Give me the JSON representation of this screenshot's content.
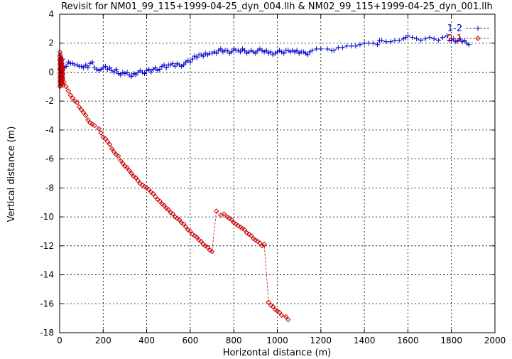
{
  "chart_data": {
    "type": "scatter",
    "title": "Revisit for NM01_99_115+1999-04-25_dyn_004.llh & NM02_99_115+1999-04-25_dyn_001.llh",
    "xlabel": "Horizontal distance (m)",
    "ylabel": "Vertical distance (m)",
    "xlim": [
      0,
      2000
    ],
    "ylim": [
      -18,
      4
    ],
    "xticks": [
      "0",
      "200",
      "400",
      "600",
      "800",
      "1000",
      "1200",
      "1400",
      "1600",
      "1800",
      "2000"
    ],
    "yticks": [
      "4",
      "2",
      "0",
      "-2",
      "-4",
      "-6",
      "-8",
      "-10",
      "-12",
      "-14",
      "-16",
      "-18"
    ],
    "grid": true,
    "legend_position": "top-right",
    "series": [
      {
        "name": "1-2",
        "color": "#0000cc",
        "marker": "plus",
        "line": "dashed",
        "points": [
          [
            2,
            1.0
          ],
          [
            3,
            0.6
          ],
          [
            4,
            0.2
          ],
          [
            5,
            -0.2
          ],
          [
            6,
            0.8
          ],
          [
            8,
            -0.4
          ],
          [
            10,
            0.5
          ],
          [
            12,
            0.1
          ],
          [
            15,
            0.9
          ],
          [
            20,
            0.3
          ],
          [
            30,
            0.4
          ],
          [
            40,
            0.7
          ],
          [
            50,
            0.6
          ],
          [
            60,
            0.6
          ],
          [
            70,
            0.5
          ],
          [
            80,
            0.5
          ],
          [
            90,
            0.4
          ],
          [
            100,
            0.4
          ],
          [
            110,
            0.3
          ],
          [
            120,
            0.5
          ],
          [
            130,
            0.3
          ],
          [
            140,
            0.6
          ],
          [
            150,
            0.7
          ],
          [
            160,
            0.3
          ],
          [
            170,
            0.2
          ],
          [
            180,
            0.1
          ],
          [
            190,
            0.2
          ],
          [
            200,
            0.3
          ],
          [
            210,
            0.4
          ],
          [
            220,
            0.2
          ],
          [
            230,
            0.3
          ],
          [
            240,
            0.1
          ],
          [
            250,
            0.0
          ],
          [
            260,
            0.2
          ],
          [
            270,
            -0.1
          ],
          [
            280,
            -0.2
          ],
          [
            290,
            0.0
          ],
          [
            300,
            -0.1
          ],
          [
            310,
            0.0
          ],
          [
            320,
            -0.2
          ],
          [
            330,
            -0.3
          ],
          [
            340,
            -0.1
          ],
          [
            350,
            -0.2
          ],
          [
            360,
            0.0
          ],
          [
            370,
            0.1
          ],
          [
            380,
            0.0
          ],
          [
            390,
            -0.1
          ],
          [
            400,
            0.1
          ],
          [
            410,
            0.2
          ],
          [
            420,
            0.0
          ],
          [
            430,
            0.2
          ],
          [
            440,
            0.3
          ],
          [
            450,
            0.1
          ],
          [
            460,
            0.2
          ],
          [
            470,
            0.4
          ],
          [
            480,
            0.5
          ],
          [
            490,
            0.3
          ],
          [
            500,
            0.5
          ],
          [
            510,
            0.5
          ],
          [
            520,
            0.6
          ],
          [
            530,
            0.4
          ],
          [
            540,
            0.6
          ],
          [
            550,
            0.5
          ],
          [
            560,
            0.4
          ],
          [
            570,
            0.5
          ],
          [
            580,
            0.7
          ],
          [
            590,
            0.8
          ],
          [
            600,
            0.7
          ],
          [
            610,
            0.9
          ],
          [
            620,
            1.1
          ],
          [
            630,
            1.0
          ],
          [
            640,
            1.2
          ],
          [
            650,
            1.2
          ],
          [
            660,
            1.1
          ],
          [
            670,
            1.3
          ],
          [
            680,
            1.2
          ],
          [
            690,
            1.3
          ],
          [
            700,
            1.3
          ],
          [
            710,
            1.4
          ],
          [
            720,
            1.3
          ],
          [
            730,
            1.5
          ],
          [
            740,
            1.6
          ],
          [
            750,
            1.4
          ],
          [
            760,
            1.5
          ],
          [
            770,
            1.5
          ],
          [
            780,
            1.3
          ],
          [
            790,
            1.4
          ],
          [
            800,
            1.6
          ],
          [
            810,
            1.5
          ],
          [
            820,
            1.5
          ],
          [
            830,
            1.4
          ],
          [
            840,
            1.6
          ],
          [
            850,
            1.5
          ],
          [
            860,
            1.3
          ],
          [
            870,
            1.4
          ],
          [
            880,
            1.5
          ],
          [
            890,
            1.4
          ],
          [
            900,
            1.3
          ],
          [
            910,
            1.5
          ],
          [
            920,
            1.6
          ],
          [
            930,
            1.5
          ],
          [
            940,
            1.4
          ],
          [
            950,
            1.5
          ],
          [
            960,
            1.3
          ],
          [
            970,
            1.4
          ],
          [
            980,
            1.2
          ],
          [
            990,
            1.3
          ],
          [
            1000,
            1.4
          ],
          [
            1010,
            1.5
          ],
          [
            1020,
            1.4
          ],
          [
            1030,
            1.3
          ],
          [
            1040,
            1.5
          ],
          [
            1050,
            1.5
          ],
          [
            1060,
            1.4
          ],
          [
            1070,
            1.5
          ],
          [
            1080,
            1.4
          ],
          [
            1090,
            1.5
          ],
          [
            1100,
            1.3
          ],
          [
            1110,
            1.4
          ],
          [
            1120,
            1.4
          ],
          [
            1130,
            1.3
          ],
          [
            1140,
            1.2
          ],
          [
            1150,
            1.4
          ],
          [
            1160,
            1.5
          ],
          [
            1180,
            1.6
          ],
          [
            1200,
            1.6
          ],
          [
            1230,
            1.6
          ],
          [
            1250,
            1.5
          ],
          [
            1260,
            1.5
          ],
          [
            1280,
            1.7
          ],
          [
            1300,
            1.7
          ],
          [
            1320,
            1.8
          ],
          [
            1340,
            1.8
          ],
          [
            1360,
            1.8
          ],
          [
            1380,
            1.9
          ],
          [
            1400,
            2.0
          ],
          [
            1420,
            2.0
          ],
          [
            1440,
            2.0
          ],
          [
            1460,
            1.9
          ],
          [
            1470,
            2.2
          ],
          [
            1480,
            2.2
          ],
          [
            1500,
            2.1
          ],
          [
            1520,
            2.1
          ],
          [
            1540,
            2.2
          ],
          [
            1560,
            2.2
          ],
          [
            1580,
            2.3
          ],
          [
            1590,
            2.4
          ],
          [
            1600,
            2.5
          ],
          [
            1620,
            2.4
          ],
          [
            1640,
            2.3
          ],
          [
            1660,
            2.2
          ],
          [
            1680,
            2.3
          ],
          [
            1700,
            2.4
          ],
          [
            1720,
            2.3
          ],
          [
            1740,
            2.2
          ],
          [
            1760,
            2.4
          ],
          [
            1780,
            2.5
          ],
          [
            1790,
            2.2
          ],
          [
            1800,
            2.2
          ],
          [
            1810,
            2.3
          ],
          [
            1820,
            2.1
          ],
          [
            1830,
            2.2
          ],
          [
            1840,
            2.3
          ],
          [
            1850,
            2.1
          ],
          [
            1860,
            2.2
          ],
          [
            1870,
            2.0
          ],
          [
            1880,
            1.9
          ]
        ]
      },
      {
        "name": "2-1",
        "color": "#cc0000",
        "marker": "diamond",
        "line": "dashed",
        "points": [
          [
            1,
            1.4
          ],
          [
            1,
            1.1
          ],
          [
            1,
            0.8
          ],
          [
            1,
            0.5
          ],
          [
            1,
            0.2
          ],
          [
            1,
            -0.1
          ],
          [
            1,
            -0.4
          ],
          [
            1,
            -0.7
          ],
          [
            1,
            -1.0
          ],
          [
            3,
            1.2
          ],
          [
            3,
            0.9
          ],
          [
            3,
            0.6
          ],
          [
            3,
            0.3
          ],
          [
            3,
            0.0
          ],
          [
            3,
            -0.3
          ],
          [
            3,
            -0.6
          ],
          [
            3,
            -0.9
          ],
          [
            5,
            1.0
          ],
          [
            5,
            0.7
          ],
          [
            5,
            0.4
          ],
          [
            5,
            0.1
          ],
          [
            5,
            -0.2
          ],
          [
            5,
            -0.5
          ],
          [
            5,
            -0.8
          ],
          [
            7,
            0.9
          ],
          [
            7,
            0.6
          ],
          [
            7,
            0.3
          ],
          [
            7,
            0.0
          ],
          [
            7,
            -0.3
          ],
          [
            7,
            -0.6
          ],
          [
            9,
            0.8
          ],
          [
            9,
            0.5
          ],
          [
            9,
            0.2
          ],
          [
            9,
            -0.1
          ],
          [
            9,
            -0.4
          ],
          [
            9,
            -0.7
          ],
          [
            11,
            0.6
          ],
          [
            11,
            0.3
          ],
          [
            11,
            0.0
          ],
          [
            11,
            -0.3
          ],
          [
            11,
            -0.6
          ],
          [
            13,
            0.4
          ],
          [
            13,
            0.1
          ],
          [
            13,
            -0.2
          ],
          [
            13,
            -0.5
          ],
          [
            13,
            -0.8
          ],
          [
            15,
            0.2
          ],
          [
            15,
            -0.1
          ],
          [
            15,
            -0.4
          ],
          [
            15,
            -0.9
          ],
          [
            20,
            -0.7
          ],
          [
            30,
            -1.0
          ],
          [
            40,
            -1.3
          ],
          [
            50,
            -1.6
          ],
          [
            60,
            -1.8
          ],
          [
            70,
            -2.0
          ],
          [
            80,
            -2.1
          ],
          [
            90,
            -2.4
          ],
          [
            100,
            -2.6
          ],
          [
            110,
            -2.8
          ],
          [
            120,
            -3.0
          ],
          [
            130,
            -3.3
          ],
          [
            140,
            -3.5
          ],
          [
            150,
            -3.6
          ],
          [
            160,
            -3.7
          ],
          [
            180,
            -3.9
          ],
          [
            190,
            -4.2
          ],
          [
            200,
            -4.5
          ],
          [
            210,
            -4.6
          ],
          [
            220,
            -4.8
          ],
          [
            230,
            -5.0
          ],
          [
            240,
            -5.3
          ],
          [
            250,
            -5.5
          ],
          [
            260,
            -5.7
          ],
          [
            270,
            -5.8
          ],
          [
            280,
            -6.1
          ],
          [
            290,
            -6.3
          ],
          [
            300,
            -6.5
          ],
          [
            310,
            -6.6
          ],
          [
            320,
            -6.8
          ],
          [
            330,
            -7.0
          ],
          [
            340,
            -7.2
          ],
          [
            350,
            -7.3
          ],
          [
            360,
            -7.5
          ],
          [
            370,
            -7.7
          ],
          [
            380,
            -7.8
          ],
          [
            390,
            -7.9
          ],
          [
            400,
            -8.0
          ],
          [
            410,
            -8.1
          ],
          [
            420,
            -8.3
          ],
          [
            430,
            -8.4
          ],
          [
            440,
            -8.6
          ],
          [
            450,
            -8.8
          ],
          [
            460,
            -8.9
          ],
          [
            470,
            -9.1
          ],
          [
            480,
            -9.2
          ],
          [
            490,
            -9.4
          ],
          [
            500,
            -9.5
          ],
          [
            510,
            -9.7
          ],
          [
            520,
            -9.8
          ],
          [
            530,
            -10.0
          ],
          [
            540,
            -10.1
          ],
          [
            550,
            -10.2
          ],
          [
            560,
            -10.4
          ],
          [
            570,
            -10.5
          ],
          [
            580,
            -10.7
          ],
          [
            590,
            -10.9
          ],
          [
            600,
            -11.0
          ],
          [
            610,
            -11.2
          ],
          [
            620,
            -11.3
          ],
          [
            630,
            -11.4
          ],
          [
            640,
            -11.6
          ],
          [
            650,
            -11.7
          ],
          [
            660,
            -11.9
          ],
          [
            670,
            -12.0
          ],
          [
            680,
            -12.1
          ],
          [
            690,
            -12.3
          ],
          [
            700,
            -12.4
          ],
          [
            720,
            -9.6
          ],
          [
            740,
            -9.9
          ],
          [
            755,
            -9.8
          ],
          [
            770,
            -10.0
          ],
          [
            780,
            -10.1
          ],
          [
            790,
            -10.2
          ],
          [
            800,
            -10.4
          ],
          [
            810,
            -10.5
          ],
          [
            820,
            -10.6
          ],
          [
            830,
            -10.7
          ],
          [
            840,
            -10.8
          ],
          [
            850,
            -10.9
          ],
          [
            860,
            -11.1
          ],
          [
            870,
            -11.2
          ],
          [
            880,
            -11.3
          ],
          [
            890,
            -11.5
          ],
          [
            900,
            -11.6
          ],
          [
            910,
            -11.7
          ],
          [
            920,
            -11.8
          ],
          [
            930,
            -12.0
          ],
          [
            940,
            -11.9
          ],
          [
            960,
            -15.9
          ],
          [
            970,
            -16.1
          ],
          [
            980,
            -16.2
          ],
          [
            990,
            -16.4
          ],
          [
            1000,
            -16.5
          ],
          [
            1010,
            -16.6
          ],
          [
            1020,
            -16.8
          ],
          [
            1040,
            -16.9
          ],
          [
            1050,
            -17.1
          ]
        ]
      }
    ]
  }
}
